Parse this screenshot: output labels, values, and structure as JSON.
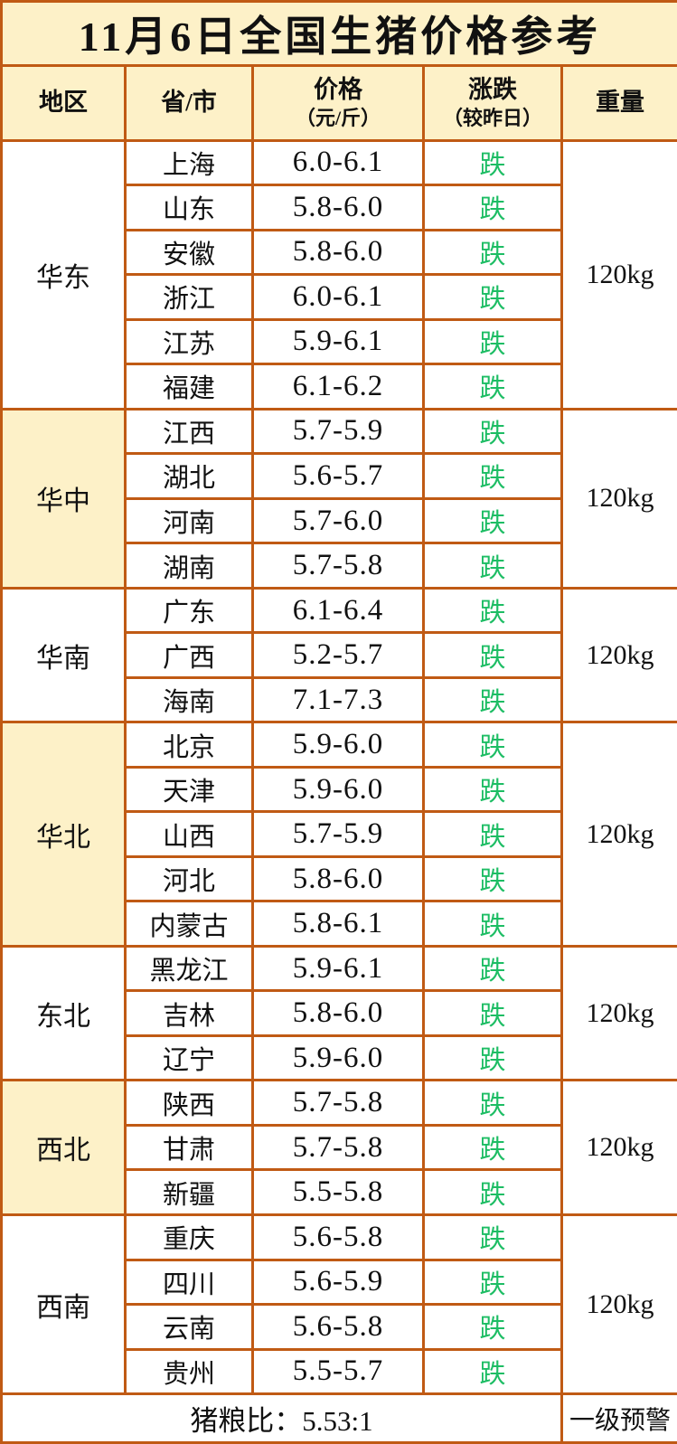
{
  "page": {
    "title": "11月6日全国生猪价格参考"
  },
  "colors": {
    "border_orange": "#c05a14",
    "cream_background": "#fdf1c8",
    "fall_green": "#1dbd64",
    "text_black": "#111111"
  },
  "header": {
    "region": "地区",
    "province": "省/市",
    "price": "价格",
    "price_unit": "（元/斤）",
    "change": "涨跌",
    "change_note": "（较昨日）",
    "weight": "重量"
  },
  "chart_data": {
    "type": "table",
    "title": "11月6日全国生猪价格参考",
    "columns": [
      "地区",
      "省/市",
      "价格（元/斤）",
      "涨跌（较昨日）",
      "重量"
    ],
    "groups": [
      {
        "region": "华东",
        "highlight": false,
        "weight": "120kg",
        "rows": [
          {
            "province": "上海",
            "price": "6.0-6.1",
            "change": "跌"
          },
          {
            "province": "山东",
            "price": "5.8-6.0",
            "change": "跌"
          },
          {
            "province": "安徽",
            "price": "5.8-6.0",
            "change": "跌"
          },
          {
            "province": "浙江",
            "price": "6.0-6.1",
            "change": "跌"
          },
          {
            "province": "江苏",
            "price": "5.9-6.1",
            "change": "跌"
          },
          {
            "province": "福建",
            "price": "6.1-6.2",
            "change": "跌"
          }
        ]
      },
      {
        "region": "华中",
        "highlight": true,
        "weight": "120kg",
        "rows": [
          {
            "province": "江西",
            "price": "5.7-5.9",
            "change": "跌"
          },
          {
            "province": "湖北",
            "price": "5.6-5.7",
            "change": "跌"
          },
          {
            "province": "河南",
            "price": "5.7-6.0",
            "change": "跌"
          },
          {
            "province": "湖南",
            "price": "5.7-5.8",
            "change": "跌"
          }
        ]
      },
      {
        "region": "华南",
        "highlight": false,
        "weight": "120kg",
        "rows": [
          {
            "province": "广东",
            "price": "6.1-6.4",
            "change": "跌"
          },
          {
            "province": "广西",
            "price": "5.2-5.7",
            "change": "跌"
          },
          {
            "province": "海南",
            "price": "7.1-7.3",
            "change": "跌"
          }
        ]
      },
      {
        "region": "华北",
        "highlight": true,
        "weight": "120kg",
        "rows": [
          {
            "province": "北京",
            "price": "5.9-6.0",
            "change": "跌"
          },
          {
            "province": "天津",
            "price": "5.9-6.0",
            "change": "跌"
          },
          {
            "province": "山西",
            "price": "5.7-5.9",
            "change": "跌"
          },
          {
            "province": "河北",
            "price": "5.8-6.0",
            "change": "跌"
          },
          {
            "province": "内蒙古",
            "price": "5.8-6.1",
            "change": "跌"
          }
        ]
      },
      {
        "region": "东北",
        "highlight": false,
        "weight": "120kg",
        "rows": [
          {
            "province": "黑龙江",
            "price": "5.9-6.1",
            "change": "跌"
          },
          {
            "province": "吉林",
            "price": "5.8-6.0",
            "change": "跌"
          },
          {
            "province": "辽宁",
            "price": "5.9-6.0",
            "change": "跌"
          }
        ]
      },
      {
        "region": "西北",
        "highlight": true,
        "weight": "120kg",
        "rows": [
          {
            "province": "陕西",
            "price": "5.7-5.8",
            "change": "跌"
          },
          {
            "province": "甘肃",
            "price": "5.7-5.8",
            "change": "跌"
          },
          {
            "province": "新疆",
            "price": "5.5-5.8",
            "change": "跌"
          }
        ]
      },
      {
        "region": "西南",
        "highlight": false,
        "weight": "120kg",
        "rows": [
          {
            "province": "重庆",
            "price": "5.6-5.8",
            "change": "跌"
          },
          {
            "province": "四川",
            "price": "5.6-5.9",
            "change": "跌"
          },
          {
            "province": "云南",
            "price": "5.6-5.8",
            "change": "跌"
          },
          {
            "province": "贵州",
            "price": "5.5-5.7",
            "change": "跌"
          }
        ]
      }
    ]
  },
  "footer": {
    "ratio": "猪粮比：5.53:1",
    "warning": "一级预警"
  }
}
